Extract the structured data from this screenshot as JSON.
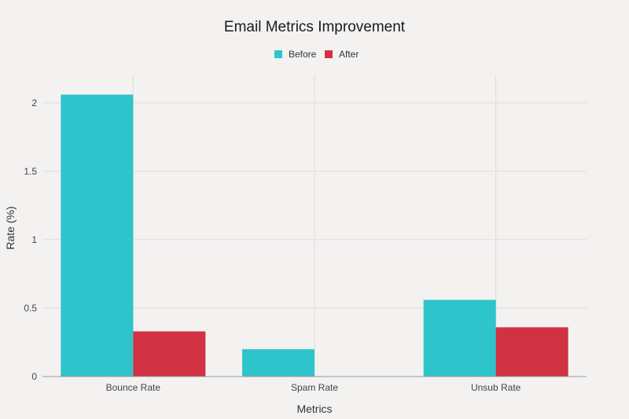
{
  "chart_data": {
    "type": "bar",
    "title": "Email Metrics Improvement",
    "xlabel": "Metrics",
    "ylabel": "Rate (%)",
    "categories": [
      "Bounce Rate",
      "Spam Rate",
      "Unsub Rate"
    ],
    "series": [
      {
        "name": "Before",
        "values": [
          2.06,
          0.2,
          0.56
        ],
        "color": "#2ec4cb"
      },
      {
        "name": "After",
        "values": [
          0.33,
          0.0,
          0.36
        ],
        "color": "#d03143"
      }
    ],
    "yticks": [
      0,
      0.5,
      1,
      1.5,
      2
    ],
    "ytick_labels": [
      "0",
      "0.5",
      "1",
      "1.5",
      "2"
    ],
    "ylim": [
      0,
      2.2
    ],
    "grid": true,
    "legend_position": "top-center"
  }
}
